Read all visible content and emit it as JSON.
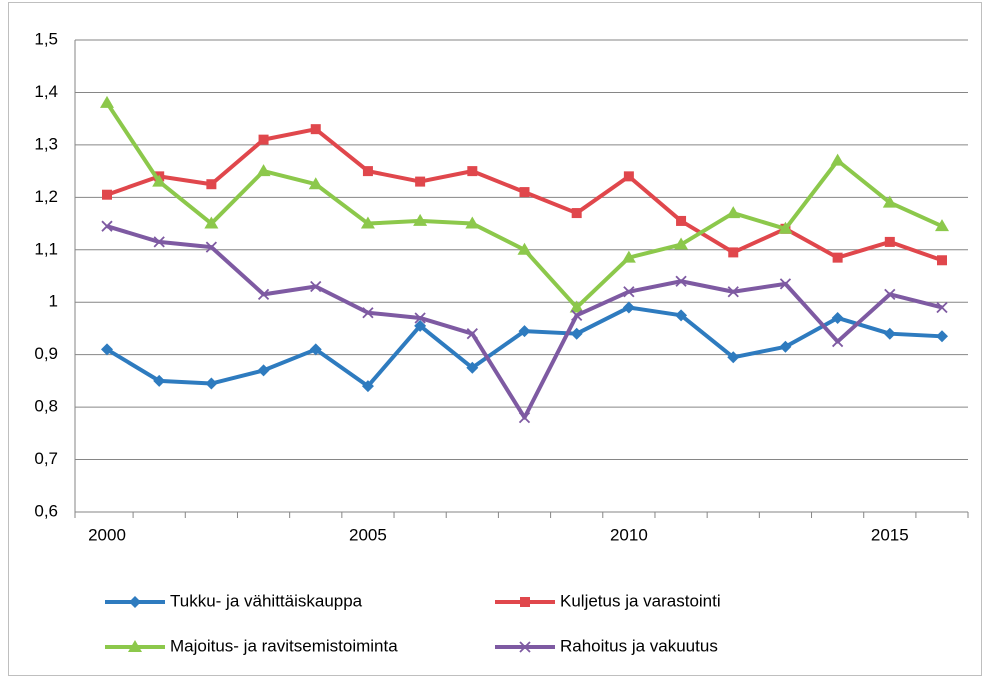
{
  "chart_data": {
    "type": "line",
    "x": [
      2000,
      2001,
      2002,
      2003,
      2004,
      2005,
      2006,
      2007,
      2008,
      2009,
      2010,
      2011,
      2012,
      2013,
      2014,
      2015,
      2016
    ],
    "xlim": [
      2000,
      2016
    ],
    "xticks": [
      2000,
      2005,
      2010,
      2015
    ],
    "ylim": [
      0.6,
      1.5
    ],
    "yticks": [
      {
        "value": 0.6,
        "label": "0,6"
      },
      {
        "value": 0.7,
        "label": "0,7"
      },
      {
        "value": 0.8,
        "label": "0,8"
      },
      {
        "value": 0.9,
        "label": "0,9"
      },
      1,
      {
        "value": 1.1,
        "label": "1,1"
      },
      {
        "value": 1.2,
        "label": "1,2"
      },
      {
        "value": 1.3,
        "label": "1,3"
      },
      {
        "value": 1.4,
        "label": "1,4"
      },
      {
        "value": 1.5,
        "label": "1,5"
      }
    ],
    "grid": true,
    "legend": "bottom",
    "series": [
      {
        "name": "Tukku- ja vähittäiskauppa",
        "color": "#2e7bbf",
        "marker": "diamond",
        "values": [
          0.91,
          0.85,
          0.845,
          0.87,
          0.91,
          0.84,
          0.955,
          0.875,
          0.945,
          0.94,
          0.99,
          0.975,
          0.895,
          0.915,
          0.97,
          0.94,
          0.935
        ]
      },
      {
        "name": "Kuljetus ja varastointi",
        "color": "#e0474c",
        "marker": "square",
        "values": [
          1.205,
          1.24,
          1.225,
          1.31,
          1.33,
          1.25,
          1.23,
          1.25,
          1.21,
          1.17,
          1.24,
          1.155,
          1.095,
          1.14,
          1.085,
          1.115,
          1.08
        ]
      },
      {
        "name": "Majoitus- ja ravitsemistoiminta",
        "color": "#8cc84b",
        "marker": "triangle",
        "values": [
          1.38,
          1.23,
          1.15,
          1.25,
          1.225,
          1.15,
          1.155,
          1.15,
          1.1,
          0.99,
          1.085,
          1.11,
          1.17,
          1.14,
          1.27,
          1.19,
          1.145
        ]
      },
      {
        "name": "Rahoitus ja vakuutus",
        "color": "#7e5aa2",
        "marker": "x",
        "values": [
          1.145,
          1.115,
          1.105,
          1.015,
          1.03,
          0.98,
          0.97,
          0.94,
          0.78,
          0.975,
          1.02,
          1.04,
          1.02,
          1.035,
          0.925,
          1.015,
          0.99
        ]
      }
    ]
  }
}
